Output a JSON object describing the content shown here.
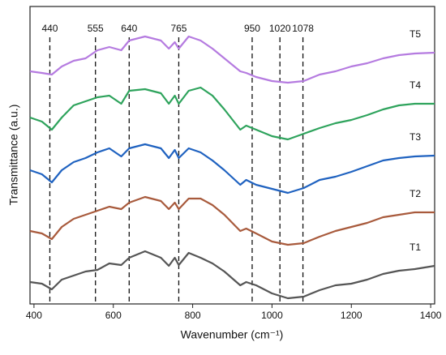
{
  "chart_data": {
    "type": "line",
    "xlabel": "Wavenumber (cm⁻¹)",
    "ylabel": "Transmittance (a.u.)",
    "x": [
      390,
      420,
      445,
      470,
      500,
      530,
      560,
      590,
      620,
      640,
      680,
      720,
      740,
      755,
      765,
      790,
      820,
      850,
      880,
      920,
      935,
      960,
      1000,
      1040,
      1080,
      1120,
      1160,
      1200,
      1240,
      1280,
      1320,
      1360,
      1410
    ],
    "series": [
      {
        "name": "T1",
        "color": "#555555",
        "values": [
          27,
          25,
          18,
          30,
          35,
          40,
          42,
          50,
          48,
          57,
          65,
          57,
          47,
          57,
          48,
          63,
          57,
          50,
          40,
          23,
          27,
          23,
          13,
          7,
          9,
          17,
          23,
          25,
          30,
          37,
          41,
          43,
          47
        ]
      },
      {
        "name": "T2",
        "color": "#a85a3c",
        "values": [
          90,
          87,
          80,
          95,
          105,
          110,
          115,
          120,
          117,
          125,
          132,
          127,
          117,
          125,
          117,
          130,
          130,
          122,
          110,
          90,
          93,
          87,
          77,
          73,
          75,
          83,
          90,
          95,
          100,
          107,
          110,
          113,
          113
        ]
      },
      {
        "name": "T3",
        "color": "#1f62c0",
        "values": [
          165,
          160,
          150,
          165,
          175,
          180,
          187,
          192,
          182,
          192,
          197,
          192,
          180,
          190,
          180,
          192,
          187,
          177,
          165,
          147,
          153,
          147,
          142,
          137,
          143,
          153,
          157,
          163,
          170,
          177,
          180,
          182,
          183
        ]
      },
      {
        "name": "T4",
        "color": "#2ea35c",
        "values": [
          230,
          225,
          215,
          230,
          245,
          250,
          255,
          257,
          247,
          263,
          265,
          260,
          247,
          257,
          247,
          263,
          267,
          257,
          240,
          215,
          220,
          215,
          207,
          203,
          210,
          217,
          223,
          227,
          233,
          240,
          245,
          247,
          247
        ]
      },
      {
        "name": "T5",
        "color": "#b57be0",
        "values": [
          287,
          285,
          283,
          293,
          300,
          303,
          313,
          317,
          313,
          325,
          330,
          325,
          315,
          323,
          315,
          330,
          325,
          315,
          303,
          287,
          285,
          280,
          275,
          273,
          275,
          283,
          287,
          293,
          297,
          303,
          307,
          309,
          310
        ]
      }
    ],
    "annotations": [
      440,
      555,
      640,
      765,
      950,
      1020,
      1078
    ],
    "xlim": [
      390,
      1410
    ],
    "ylim": [
      0,
      367
    ],
    "xticks": [
      400,
      600,
      800,
      1000,
      1200,
      1400
    ]
  }
}
